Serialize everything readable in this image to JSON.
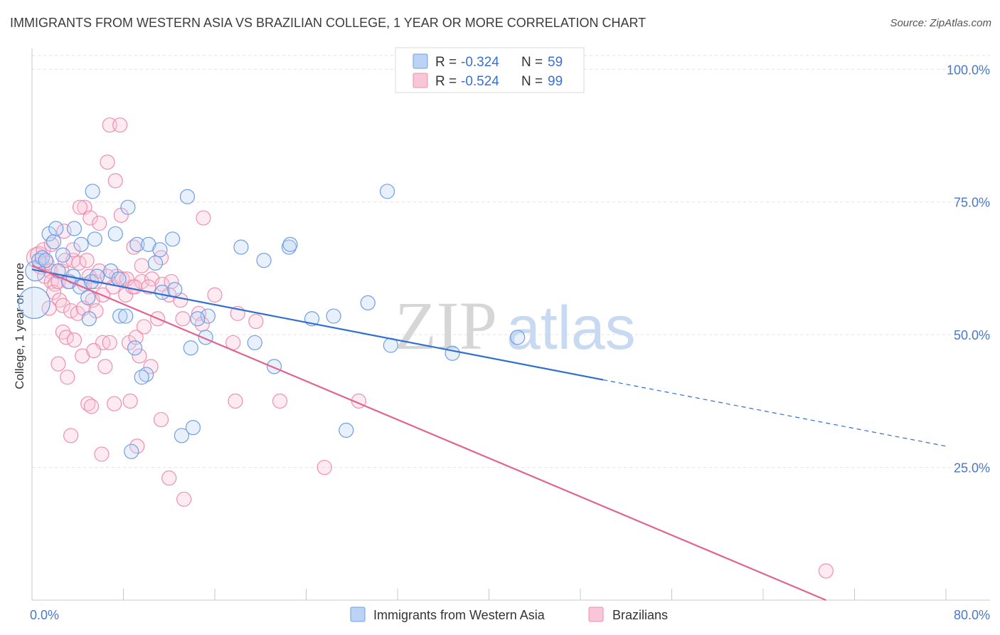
{
  "header": {
    "title": "IMMIGRANTS FROM WESTERN ASIA VS BRAZILIAN COLLEGE, 1 YEAR OR MORE CORRELATION CHART",
    "source": "Source: ZipAtlas.com"
  },
  "watermark": {
    "part1": "ZIP",
    "part2": "atlas"
  },
  "colors": {
    "blue": "#6e9ee6",
    "blue_line": "#2f6fd0",
    "pink": "#ee8fb0",
    "pink_line": "#e0648f",
    "tick_text": "#4a78c8"
  },
  "legend": {
    "r_label": "R =",
    "n_label": "N =",
    "items": [
      {
        "r": "-0.324",
        "n": "59"
      },
      {
        "r": "-0.524",
        "n": "99"
      }
    ]
  },
  "bottom_legend": [
    "Immigrants from Western Asia",
    "Brazilians"
  ],
  "chart_data": {
    "type": "scatter",
    "title": "IMMIGRANTS FROM WESTERN ASIA VS BRAZILIAN COLLEGE, 1 YEAR OR MORE CORRELATION CHART",
    "xlabel": "",
    "ylabel": "College, 1 year or more",
    "xlim": [
      0,
      80
    ],
    "ylim": [
      0,
      105
    ],
    "x_tick_labels": [
      "0.0%",
      "80.0%"
    ],
    "y_ticks": [
      {
        "value": 25,
        "label": "25.0%"
      },
      {
        "value": 50,
        "label": "50.0%"
      },
      {
        "value": 75,
        "label": "75.0%"
      },
      {
        "value": 100,
        "label": "100.0%"
      }
    ],
    "grid": true,
    "legend_position": "top-center",
    "series": [
      {
        "name": "Immigrants from Western Asia",
        "r": -0.324,
        "n": 59,
        "trend": {
          "x0": 0,
          "y0": 62.3,
          "x1": 50,
          "y1": 41.5,
          "dash_to_x": 80,
          "dash_to_y": 29
        },
        "points": [
          [
            0.3,
            62,
            14
          ],
          [
            0.2,
            56,
            22
          ],
          [
            0.6,
            64,
            10
          ],
          [
            0.9,
            64.5,
            10
          ],
          [
            1.2,
            64,
            10
          ],
          [
            1.5,
            69,
            10
          ],
          [
            1.9,
            67.5,
            10
          ],
          [
            2.1,
            70,
            10
          ],
          [
            2.7,
            65,
            10
          ],
          [
            2.3,
            62,
            10
          ],
          [
            3.2,
            60,
            10
          ],
          [
            3.6,
            61,
            10
          ],
          [
            4.2,
            59,
            10
          ],
          [
            5.2,
            60,
            10
          ],
          [
            5.5,
            68,
            10
          ],
          [
            5.7,
            61,
            10
          ],
          [
            6.9,
            62,
            10
          ],
          [
            3.7,
            70,
            10
          ],
          [
            4.3,
            67,
            10
          ],
          [
            5.3,
            77,
            10
          ],
          [
            7.3,
            69,
            10
          ],
          [
            8.4,
            74,
            10
          ],
          [
            9.2,
            67,
            10
          ],
          [
            10.8,
            63.5,
            10
          ],
          [
            10.2,
            67,
            10
          ],
          [
            11.2,
            66,
            10
          ],
          [
            12.3,
            68,
            10
          ],
          [
            11.4,
            58,
            10
          ],
          [
            12.5,
            58.5,
            10
          ],
          [
            13.6,
            76,
            10
          ],
          [
            15.4,
            53.5,
            10
          ],
          [
            14.5,
            53,
            10
          ],
          [
            15.2,
            49.5,
            10
          ],
          [
            13.9,
            47.5,
            10
          ],
          [
            18.3,
            66.5,
            10
          ],
          [
            19.5,
            48.5,
            10
          ],
          [
            20.3,
            64,
            10
          ],
          [
            21.2,
            44,
            10
          ],
          [
            22.5,
            66.5,
            10
          ],
          [
            22.6,
            67,
            10
          ],
          [
            24.5,
            53,
            10
          ],
          [
            26.4,
            53.5,
            10
          ],
          [
            27.5,
            32,
            10
          ],
          [
            29.4,
            56,
            10
          ],
          [
            31.1,
            77,
            10
          ],
          [
            31.4,
            48,
            10
          ],
          [
            36.8,
            46.5,
            10
          ],
          [
            42.5,
            49.5,
            10
          ],
          [
            5.0,
            53,
            10
          ],
          [
            7.7,
            53.5,
            10
          ],
          [
            8.2,
            53.5,
            10
          ],
          [
            9.0,
            47.5,
            10
          ],
          [
            10.0,
            42.5,
            10
          ],
          [
            9.6,
            42,
            10
          ],
          [
            8.7,
            28,
            10
          ],
          [
            13.1,
            31,
            10
          ],
          [
            14.1,
            32.5,
            10
          ],
          [
            7.6,
            60.5,
            10
          ],
          [
            4.9,
            57,
            10
          ]
        ]
      },
      {
        "name": "Brazilians",
        "r": -0.524,
        "n": 99,
        "trend": {
          "x0": 0,
          "y0": 63,
          "x1": 69.5,
          "y1": 0
        },
        "points": [
          [
            0.4,
            64.5,
            14
          ],
          [
            0.6,
            65,
            12
          ],
          [
            0.8,
            63,
            12
          ],
          [
            1.0,
            66,
            10
          ],
          [
            1.3,
            63.5,
            10
          ],
          [
            1.6,
            62,
            10
          ],
          [
            1.1,
            61,
            10
          ],
          [
            1.7,
            60,
            10
          ],
          [
            2.0,
            59.5,
            10
          ],
          [
            1.9,
            58,
            10
          ],
          [
            2.3,
            60,
            10
          ],
          [
            2.6,
            62,
            10
          ],
          [
            2.4,
            56.5,
            10
          ],
          [
            2.9,
            64,
            10
          ],
          [
            3.3,
            60,
            10
          ],
          [
            3.6,
            64,
            10
          ],
          [
            4.1,
            63.5,
            10
          ],
          [
            4.6,
            59.5,
            10
          ],
          [
            5.0,
            61,
            10
          ],
          [
            5.3,
            56.5,
            10
          ],
          [
            5.5,
            60,
            10
          ],
          [
            5.9,
            62,
            10
          ],
          [
            6.2,
            57.5,
            10
          ],
          [
            7.1,
            59,
            10
          ],
          [
            7.4,
            61,
            10
          ],
          [
            7.9,
            60.5,
            10
          ],
          [
            8.2,
            57.5,
            10
          ],
          [
            8.8,
            59,
            10
          ],
          [
            9.6,
            60,
            10
          ],
          [
            10.5,
            60.5,
            10
          ],
          [
            11.4,
            59.5,
            10
          ],
          [
            12.2,
            60,
            10
          ],
          [
            1.5,
            55,
            10
          ],
          [
            2.7,
            55.5,
            10
          ],
          [
            3.4,
            54.5,
            10
          ],
          [
            4.0,
            54,
            10
          ],
          [
            4.5,
            55,
            10
          ],
          [
            5.6,
            54.5,
            10
          ],
          [
            6.2,
            48.5,
            10
          ],
          [
            6.8,
            48.5,
            10
          ],
          [
            8.5,
            48.5,
            10
          ],
          [
            9.1,
            49.5,
            10
          ],
          [
            9.8,
            51.5,
            10
          ],
          [
            11.0,
            53,
            10
          ],
          [
            12.0,
            57.5,
            10
          ],
          [
            13.2,
            53,
            10
          ],
          [
            14.6,
            54,
            10
          ],
          [
            14.9,
            52,
            10
          ],
          [
            16.0,
            57.5,
            10
          ],
          [
            17.6,
            48.5,
            10
          ],
          [
            18.0,
            54,
            10
          ],
          [
            19.6,
            52.5,
            10
          ],
          [
            2.7,
            50.5,
            10
          ],
          [
            3.0,
            49.5,
            10
          ],
          [
            3.7,
            49,
            10
          ],
          [
            4.4,
            46,
            10
          ],
          [
            5.4,
            47,
            10
          ],
          [
            6.4,
            44,
            10
          ],
          [
            9.4,
            46,
            10
          ],
          [
            10.4,
            44,
            10
          ],
          [
            2.3,
            44.5,
            10
          ],
          [
            3.1,
            42,
            10
          ],
          [
            4.9,
            37,
            10
          ],
          [
            5.2,
            36.5,
            10
          ],
          [
            7.2,
            37,
            10
          ],
          [
            8.6,
            37.5,
            10
          ],
          [
            11.3,
            34,
            10
          ],
          [
            3.4,
            31,
            10
          ],
          [
            6.1,
            27.5,
            10
          ],
          [
            9.2,
            29,
            10
          ],
          [
            12.0,
            23,
            10
          ],
          [
            13.3,
            19,
            10
          ],
          [
            17.8,
            37.5,
            10
          ],
          [
            21.7,
            37.5,
            10
          ],
          [
            25.6,
            25,
            10
          ],
          [
            28.6,
            37.5,
            10
          ],
          [
            1.7,
            67,
            10
          ],
          [
            2.8,
            69.5,
            10
          ],
          [
            3.6,
            66,
            10
          ],
          [
            4.6,
            74,
            10
          ],
          [
            5.1,
            72,
            10
          ],
          [
            5.9,
            71,
            10
          ],
          [
            6.6,
            82.5,
            10
          ],
          [
            7.3,
            79,
            10
          ],
          [
            6.8,
            89.5,
            10
          ],
          [
            7.7,
            89.5,
            10
          ],
          [
            7.8,
            72.5,
            10
          ],
          [
            8.9,
            66.5,
            10
          ],
          [
            9.6,
            63,
            10
          ],
          [
            10.2,
            59,
            10
          ],
          [
            11.3,
            64.5,
            10
          ],
          [
            15.0,
            72,
            10
          ],
          [
            4.2,
            74,
            10
          ],
          [
            69.5,
            5.5,
            10
          ],
          [
            8.3,
            60.5,
            10
          ],
          [
            9.0,
            59,
            10
          ],
          [
            4.8,
            64,
            10
          ],
          [
            6.6,
            61,
            10
          ],
          [
            13.0,
            56.5,
            10
          ]
        ]
      }
    ]
  }
}
